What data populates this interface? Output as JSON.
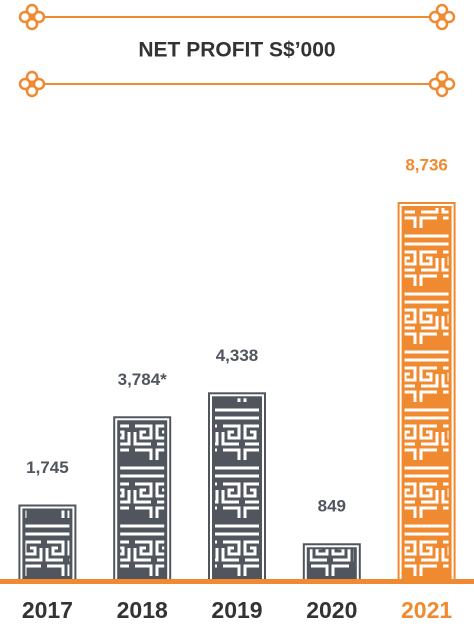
{
  "chart_data": {
    "type": "bar",
    "title": "NET PROFIT S$’000",
    "categories": [
      "2017",
      "2018",
      "2019",
      "2020",
      "2021"
    ],
    "values": [
      1745,
      3784,
      4338,
      849,
      8736
    ],
    "value_labels": [
      "1,745",
      "3,784*",
      "4,338",
      "849",
      "8,736"
    ],
    "colors": [
      "#50555e",
      "#50555e",
      "#50555e",
      "#50555e",
      "#f08a30"
    ]
  }
}
